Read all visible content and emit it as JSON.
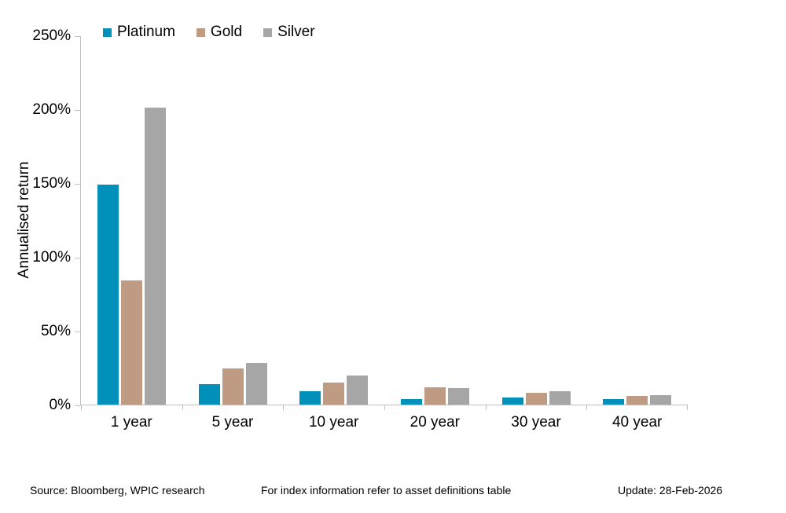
{
  "chart_data": {
    "type": "bar",
    "title": "",
    "ylabel": "Annualised return",
    "xlabel": "",
    "ylim": [
      0,
      250
    ],
    "ytick_step": 50,
    "ytick_labels": [
      "0%",
      "50%",
      "100%",
      "150%",
      "200%",
      "250%"
    ],
    "grid": false,
    "legend_position": "top",
    "categories": [
      "1 year",
      "5 year",
      "10 year",
      "20 year",
      "30 year",
      "40 year"
    ],
    "series": [
      {
        "name": "Platinum",
        "color": "#0090ba",
        "values": [
          149,
          14,
          9,
          3.5,
          5,
          3.5
        ]
      },
      {
        "name": "Gold",
        "color": "#bf9b84",
        "values": [
          84,
          24.5,
          15,
          11.5,
          8,
          6
        ]
      },
      {
        "name": "Silver",
        "color": "#a6a6a6",
        "values": [
          201,
          28,
          19.5,
          11,
          9,
          6.5
        ]
      }
    ]
  },
  "footer": {
    "source": "Source: Bloomberg, WPIC research",
    "note": "For index information refer to asset definitions table",
    "update": "Update: 28-Feb-2026"
  },
  "colors": {
    "axis": "#bfbfbf",
    "text": "#000000",
    "background": "#ffffff"
  }
}
